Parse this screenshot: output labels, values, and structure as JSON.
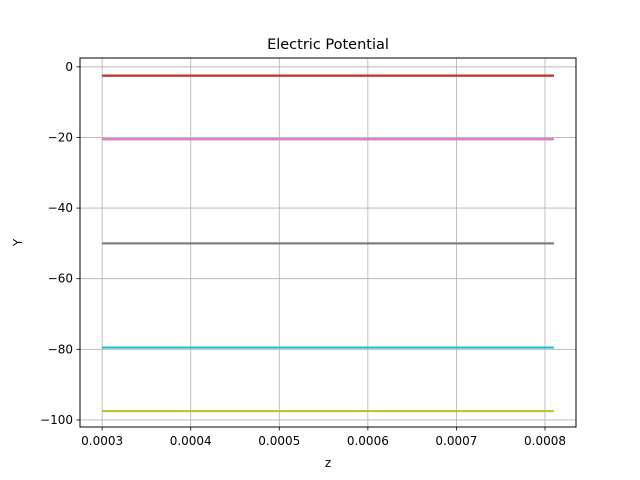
{
  "chart_data": {
    "type": "line",
    "title": "Electric Potential",
    "xlabel": "z",
    "ylabel": "Y",
    "xlim": [
      0.000275,
      0.000835
    ],
    "ylim": [
      -102,
      2.5
    ],
    "xticks": [
      0.0003,
      0.0004,
      0.0005,
      0.0006,
      0.0007,
      0.0008
    ],
    "xtick_labels": [
      "0.0003",
      "0.0004",
      "0.0005",
      "0.0006",
      "0.0007",
      "0.0008"
    ],
    "yticks": [
      0,
      -20,
      -40,
      -60,
      -80,
      -100
    ],
    "ytick_labels": [
      "0",
      "−20",
      "−40",
      "−60",
      "−80",
      "−100"
    ],
    "grid": true,
    "series": [
      {
        "color": "#1f77b4",
        "x": [
          0.0003,
          0.00081
        ],
        "values": [
          -2.5,
          -2.5
        ]
      },
      {
        "color": "#ff7f0e",
        "x": [
          0.0003,
          0.00081
        ],
        "values": [
          -2.5,
          -2.5
        ]
      },
      {
        "color": "#2ca02c",
        "x": [
          0.0003,
          0.00081
        ],
        "values": [
          -2.5,
          -2.5
        ]
      },
      {
        "color": "#d62728",
        "x": [
          0.0003,
          0.00081
        ],
        "values": [
          -2.5,
          -2.5
        ]
      },
      {
        "color": "#9467bd",
        "x": [
          0.0003,
          0.00081
        ],
        "values": [
          -20.5,
          -20.5
        ]
      },
      {
        "color": "#e377c2",
        "x": [
          0.0003,
          0.00081
        ],
        "values": [
          -20.5,
          -20.5
        ]
      },
      {
        "color": "#8c564b",
        "x": [
          0.0003,
          0.00081
        ],
        "values": [
          -50,
          -50
        ]
      },
      {
        "color": "#7f7f7f",
        "x": [
          0.0003,
          0.00081
        ],
        "values": [
          -50,
          -50
        ]
      },
      {
        "color": "#17becf",
        "x": [
          0.0003,
          0.00081
        ],
        "values": [
          -79.5,
          -79.5
        ]
      },
      {
        "color": "#bcbd22",
        "x": [
          0.0003,
          0.00081
        ],
        "values": [
          -97.5,
          -97.5
        ]
      }
    ]
  }
}
